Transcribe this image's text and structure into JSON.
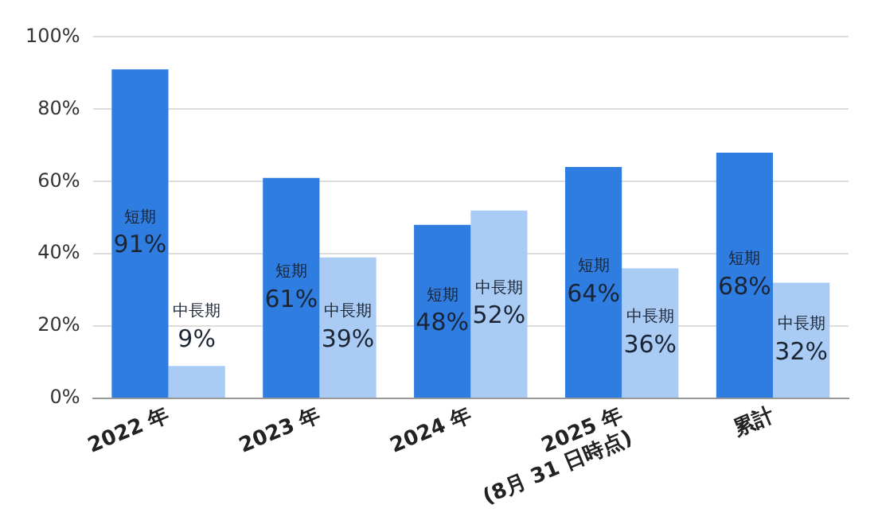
{
  "chart_data": {
    "type": "bar",
    "categories": [
      "2022 年",
      "2023 年",
      "2024 年",
      "2025 年\n(8月 31 日時点)",
      "累計"
    ],
    "series": [
      {
        "name": "短期",
        "color": "#2f7de1",
        "values": [
          91,
          61,
          48,
          64,
          68
        ],
        "value_labels": [
          "91%",
          "61%",
          "48%",
          "64%",
          "68%"
        ]
      },
      {
        "name": "中長期",
        "color": "#a9cbf4",
        "values": [
          9,
          39,
          52,
          36,
          32
        ],
        "value_labels": [
          "9%",
          "39%",
          "52%",
          "36%",
          "32%"
        ]
      }
    ],
    "ylim": [
      0,
      100
    ],
    "yticks": [
      {
        "value": 0,
        "label": "0%"
      },
      {
        "value": 20,
        "label": "20%"
      },
      {
        "value": 40,
        "label": "40%"
      },
      {
        "value": 60,
        "label": "60%"
      },
      {
        "value": 80,
        "label": "80%"
      },
      {
        "value": 100,
        "label": "100%"
      }
    ],
    "grid": "y",
    "legend": false
  }
}
